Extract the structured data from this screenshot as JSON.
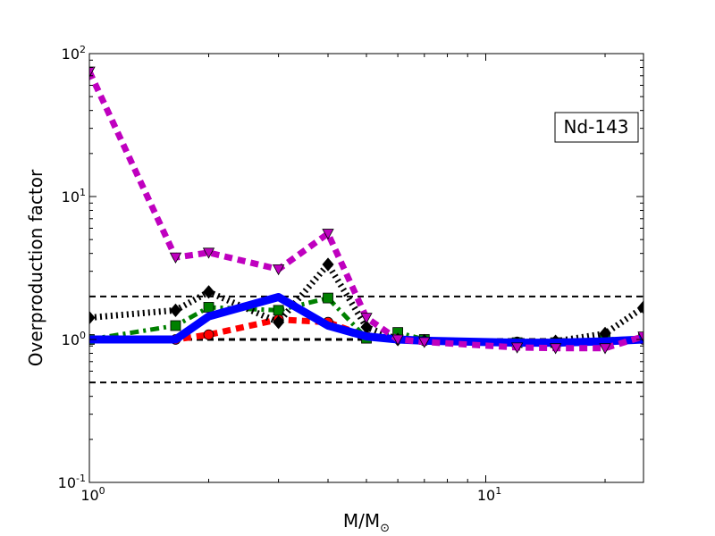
{
  "chart_data": {
    "type": "line",
    "xscale": "log",
    "yscale": "log",
    "xlim": [
      1,
      25
    ],
    "ylim": [
      0.1,
      100
    ],
    "xlabel_main": "M/M",
    "xlabel_sub": "⊙",
    "ylabel": "Overproduction factor",
    "x_ticks": [
      {
        "value": 1,
        "base": "10",
        "exp": "0"
      },
      {
        "value": 10,
        "base": "10",
        "exp": "1"
      }
    ],
    "y_ticks": [
      {
        "value": 0.1,
        "base": "10",
        "exp": "-1"
      },
      {
        "value": 1,
        "base": "10",
        "exp": "0"
      },
      {
        "value": 10,
        "base": "10",
        "exp": "1"
      },
      {
        "value": 100,
        "base": "10",
        "exp": "2"
      }
    ],
    "annotation": "Nd-143",
    "reference_lines": [
      {
        "y": 2.0,
        "style": "dashed",
        "width": 2
      },
      {
        "y": 1.0,
        "style": "dashed",
        "width": 3
      },
      {
        "y": 0.5,
        "style": "dashed",
        "width": 2
      }
    ],
    "series": [
      {
        "color": "#ff0000",
        "dash": "9 6",
        "width": 7,
        "marker": "circle",
        "x": [
          1,
          1.65,
          2,
          3,
          4,
          5,
          6,
          7,
          12,
          15,
          20,
          25
        ],
        "y": [
          1.0,
          1.0,
          1.08,
          1.38,
          1.32,
          1.05,
          1.02,
          0.98,
          0.96,
          0.96,
          0.97,
          1.0
        ]
      },
      {
        "color": "#008000",
        "dash": "10 5 3 5",
        "width": 5,
        "marker": "square",
        "x": [
          1,
          1.65,
          2,
          3,
          4,
          5,
          6,
          7,
          12,
          15,
          20,
          25
        ],
        "y": [
          1.0,
          1.25,
          1.68,
          1.6,
          1.95,
          1.02,
          1.12,
          1.0,
          0.95,
          0.95,
          1.0,
          1.02
        ]
      },
      {
        "color": "#000000",
        "dash": "2 4",
        "width": 7,
        "marker": "diamond",
        "x": [
          1,
          1.65,
          2,
          3,
          4,
          5,
          6,
          7,
          12,
          15,
          20,
          25
        ],
        "y": [
          1.42,
          1.6,
          2.15,
          1.32,
          3.35,
          1.22,
          1.0,
          0.98,
          0.94,
          0.97,
          1.1,
          1.68
        ]
      },
      {
        "color": "#0000ff",
        "dash": "",
        "width": 9,
        "marker": "none",
        "x": [
          1,
          1.65,
          2,
          3,
          4,
          5,
          6,
          7,
          12,
          15,
          20,
          25
        ],
        "y": [
          1.0,
          1.0,
          1.45,
          1.98,
          1.25,
          1.05,
          1.0,
          0.98,
          0.95,
          0.95,
          0.97,
          1.0
        ]
      },
      {
        "color": "#bf00bf",
        "dash": "9 6",
        "width": 7,
        "marker": "triangle-down",
        "x": [
          1,
          1.65,
          2,
          3,
          4,
          5,
          6,
          7,
          12,
          15,
          20,
          25
        ],
        "y": [
          75,
          3.75,
          4.05,
          3.1,
          5.5,
          1.42,
          1.0,
          0.96,
          0.88,
          0.87,
          0.87,
          1.05
        ]
      }
    ]
  }
}
